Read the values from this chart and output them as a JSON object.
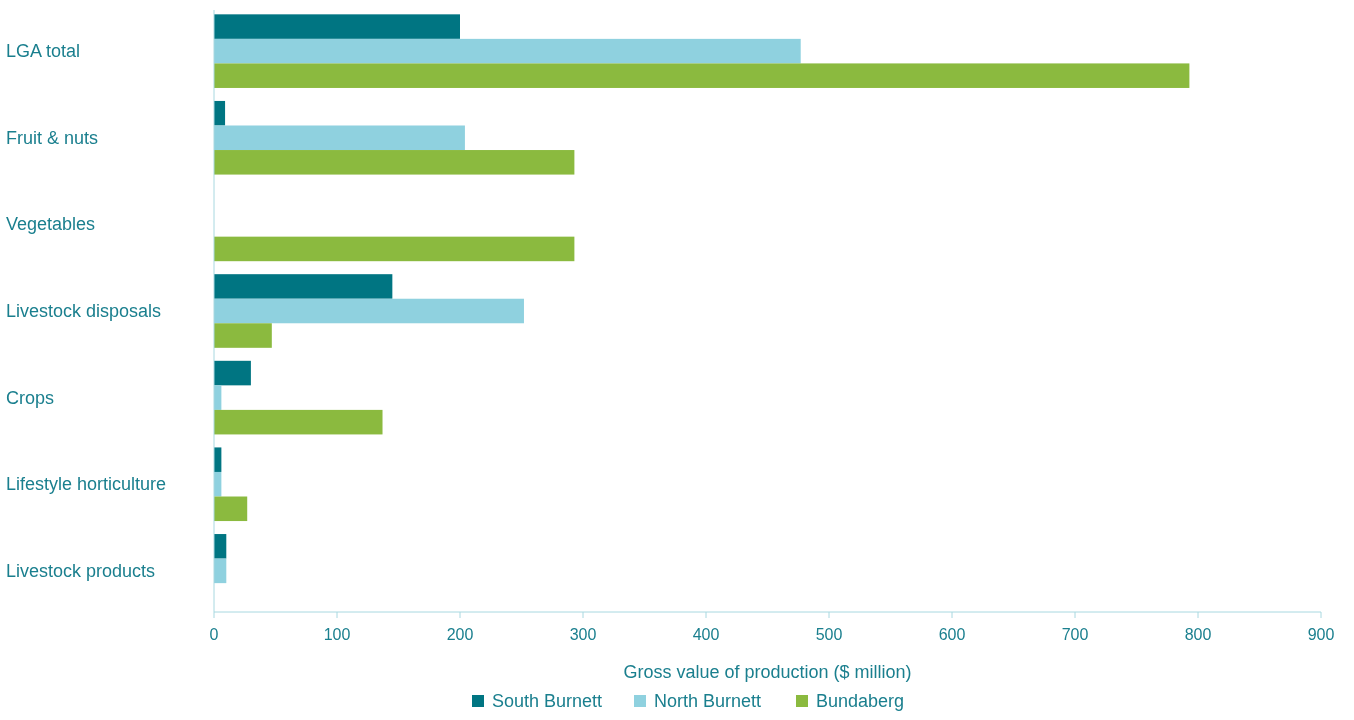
{
  "chart_data": {
    "type": "bar",
    "orientation": "horizontal",
    "xlabel": "Gross value of production ($ million)",
    "categories": [
      "LGA total",
      "Fruit & nuts",
      "Vegetables",
      "Livestock disposals",
      "Crops",
      "Lifestyle horticulture",
      "Livestock products"
    ],
    "series": [
      {
        "name": "South Burnett",
        "color": "#007582",
        "values": [
          200,
          9,
          null,
          145,
          30,
          6,
          10
        ]
      },
      {
        "name": "North Burnett",
        "color": "#8fd1df",
        "values": [
          477,
          204,
          null,
          252,
          6,
          6,
          10
        ]
      },
      {
        "name": "Bundaberg",
        "color": "#8bba3f",
        "values": [
          793,
          293,
          293,
          47,
          137,
          27,
          null
        ]
      }
    ],
    "xlim": [
      0,
      900
    ],
    "xticks": [
      0,
      100,
      200,
      300,
      400,
      500,
      600,
      700,
      800,
      900
    ],
    "grid": false,
    "legend": "bottom"
  }
}
